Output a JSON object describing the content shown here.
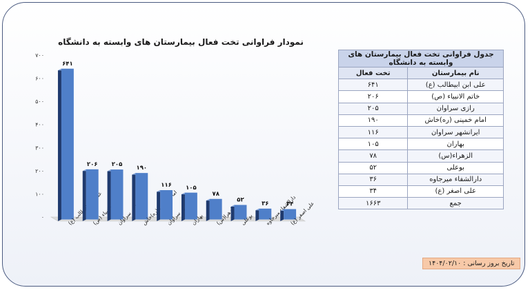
{
  "chart_data": {
    "type": "bar",
    "title": "نمودار فراوانی تخت فعال بیمارستان های وابسته به دانشگاه",
    "categories": [
      "علی ابن ابیطالب (ع)",
      "خاتم الانبیاء (ص)",
      "رازی سراوان",
      "امام خمینی (ره)خاش",
      "ایرانشهر سراوان",
      "بهاران",
      "الزهرا(س)",
      "یوعلی",
      "دارالشفاء میرجاوه",
      "علی اصغر (ع)"
    ],
    "values": [
      641,
      206,
      205,
      190,
      116,
      105,
      78,
      52,
      36,
      34
    ],
    "value_labels": [
      "۶۴۱",
      "۲۰۶",
      "۲۰۵",
      "۱۹۰",
      "۱۱۶",
      "۱۰۵",
      "۷۸",
      "۵۲",
      "۳۶",
      "۳۴"
    ],
    "ylim": [
      0,
      700
    ],
    "yticks": [
      0,
      100,
      200,
      300,
      400,
      500,
      600,
      700
    ],
    "ytick_labels": [
      "۰",
      "۱۰۰",
      "۲۰۰",
      "۳۰۰",
      "۴۰۰",
      "۵۰۰",
      "۶۰۰",
      "۷۰۰"
    ],
    "grid": false,
    "bar_color": "#4f7fc9"
  },
  "table": {
    "title": "جدول فراوانی تخت فعال بیمارستان های وابسته به  دانشگاه",
    "col_name": "نام بیمارستان",
    "col_value": "تخت فعال",
    "rows": [
      {
        "name": "علی ابن ابیطالب (ع)",
        "value": "۶۴۱"
      },
      {
        "name": "خاتم الانبیاء (ص)",
        "value": "۲۰۶"
      },
      {
        "name": "رازی سراوان",
        "value": "۲۰۵"
      },
      {
        "name": "امام خمینی (ره)خاش",
        "value": "۱۹۰"
      },
      {
        "name": "ایرانشهر سراوان",
        "value": "۱۱۶"
      },
      {
        "name": "بهاران",
        "value": "۱۰۵"
      },
      {
        "name": "الزهراء(س)",
        "value": "۷۸"
      },
      {
        "name": "بوعلی",
        "value": "۵۲"
      },
      {
        "name": "دارالشفاء میرجاوه",
        "value": "۳۶"
      },
      {
        "name": "علی اصغر (ع)",
        "value": "۳۴"
      }
    ],
    "total_label": "جمع",
    "total_value": "۱۶۶۳"
  },
  "update_label": "تاریخ بروز رسانی : ۱۴۰۴/۰۲/۱۰"
}
